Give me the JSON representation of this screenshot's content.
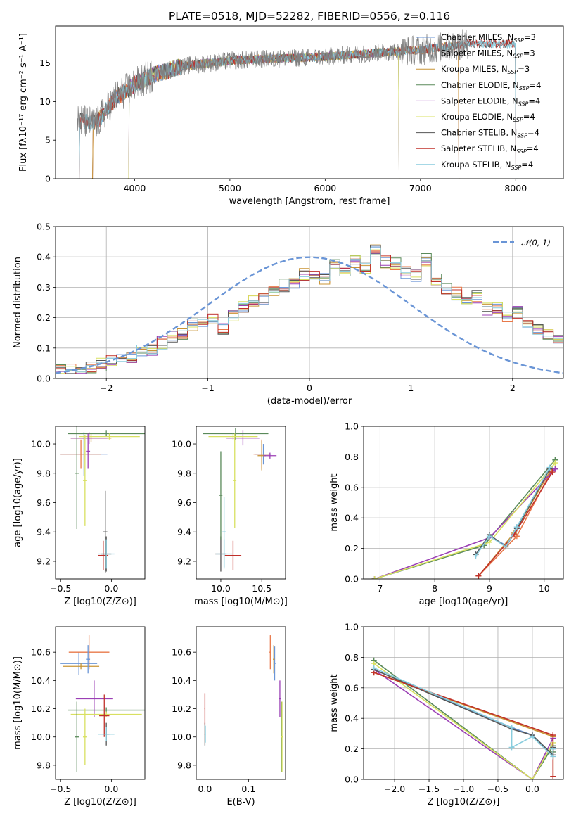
{
  "figure_title": "PLATE=0518, MJD=52282, FIBERID=0556, z=0.116",
  "series_colors": [
    "#6a95d6",
    "#e8794a",
    "#c89434",
    "#5a8a5a",
    "#9b3fb5",
    "#d8e060",
    "#555555",
    "#c0302a",
    "#88ccdd"
  ],
  "chart_data": [
    {
      "type": "line",
      "id": "spectrum",
      "xlabel": "wavelength [Angstrom, rest frame]",
      "ylabel": "Flux [fλ10⁻¹⁷ erg cm⁻² s⁻¹ A⁻¹]",
      "xlim": [
        3170,
        8500
      ],
      "ylim": [
        0,
        19.8
      ],
      "xticks": [
        4000,
        5000,
        6000,
        7000,
        8000
      ],
      "yticks": [
        0,
        5,
        10,
        15
      ],
      "legend_position": "right",
      "data_color": "#808080",
      "data_wavelength_range": [
        3400,
        7500
      ],
      "data_description_points": {
        "x": [
          3400,
          3600,
          3800,
          4000,
          4200,
          4500,
          5000,
          5500,
          6000,
          6500,
          7000,
          7500
        ],
        "y": [
          7.5,
          7.2,
          10.5,
          12.2,
          13.5,
          14.6,
          15.3,
          15.6,
          15.8,
          16.3,
          16.7,
          17.5
        ]
      },
      "series": [
        {
          "name": "Chabrier MILES, N_SSP=3",
          "x_range": [
            3540,
            7420
          ]
        },
        {
          "name": "Salpeter MILES, N_SSP=3",
          "x_range": [
            3540,
            7420
          ]
        },
        {
          "name": "Kroupa MILES, N_SSP=3",
          "x_range": [
            3540,
            7420
          ]
        },
        {
          "name": "Chabrier ELODIE, N_SSP=4",
          "x_range": [
            3920,
            6790
          ]
        },
        {
          "name": "Salpeter ELODIE, N_SSP=4",
          "x_range": [
            3920,
            6790
          ]
        },
        {
          "name": "Kroupa ELODIE, N_SSP=4",
          "x_range": [
            3920,
            6790
          ]
        },
        {
          "name": "Chabrier STELIB, N_SSP=4",
          "x_range": [
            3400,
            8020
          ]
        },
        {
          "name": "Salpeter STELIB, N_SSP=4",
          "x_range": [
            3400,
            8020
          ]
        },
        {
          "name": "Kroupa STELIB, N_SSP=4",
          "x_range": [
            3400,
            8020
          ]
        }
      ]
    },
    {
      "type": "histogram",
      "id": "residuals",
      "xlabel": "(data-model)/error",
      "ylabel": "Normed distribution",
      "xlim": [
        -2.5,
        2.5
      ],
      "ylim": [
        0,
        0.5
      ],
      "xticks": [
        -2,
        -1,
        0,
        1,
        2
      ],
      "yticks": [
        0.0,
        0.1,
        0.2,
        0.3,
        0.4,
        0.5
      ],
      "grid": true,
      "bin_width": 0.1,
      "reference_curve": {
        "name": "𝒩(0, 1)",
        "style": "dashed",
        "color": "#6a95d6",
        "mean": 0,
        "sigma": 1
      },
      "legend_position": "top-right",
      "base_bin_values": [
        0.036,
        0.03,
        0.028,
        0.035,
        0.045,
        0.057,
        0.062,
        0.072,
        0.09,
        0.095,
        0.118,
        0.135,
        0.15,
        0.175,
        0.182,
        0.195,
        0.165,
        0.205,
        0.238,
        0.26,
        0.26,
        0.28,
        0.305,
        0.31,
        0.34,
        0.345,
        0.33,
        0.375,
        0.35,
        0.385,
        0.36,
        0.42,
        0.385,
        0.375,
        0.35,
        0.34,
        0.39,
        0.325,
        0.3,
        0.28,
        0.255,
        0.27,
        0.23,
        0.235,
        0.205,
        0.215,
        0.185,
        0.16,
        0.14,
        0.12,
        0.11,
        0.098,
        0.085,
        0.08,
        0.066,
        0.058,
        0.05,
        0.04,
        0.032,
        0.028
      ]
    },
    {
      "type": "errorbar",
      "id": "age_vs_Z",
      "xlabel": "Z [log10(Z/Z⊙)]",
      "ylabel": "age  [log10(age/yr)]",
      "xlim": [
        -0.55,
        0.33
      ],
      "ylim": [
        9.08,
        10.12
      ],
      "xticks": [
        -0.5,
        0.0
      ],
      "yticks": [
        9.2,
        9.4,
        9.6,
        9.8,
        10.0
      ],
      "points": [
        {
          "series": 0,
          "x": -0.27,
          "y": 9.93,
          "xerr": 0.23,
          "yerr": 0.15
        },
        {
          "series": 1,
          "x": -0.3,
          "y": 9.93,
          "xerr": 0.2,
          "yerr": 0.1
        },
        {
          "series": 2,
          "x": -0.2,
          "y": 10.04,
          "xerr": 0.2,
          "yerr": 0.03
        },
        {
          "series": 3,
          "x": -0.05,
          "y": 10.07,
          "xerr": 0.38,
          "yerr": 0.02
        },
        {
          "series": 4,
          "x": -0.22,
          "y": 10.04,
          "xerr": 0.18,
          "yerr": 0.04
        },
        {
          "series": 5,
          "x": -0.02,
          "y": 10.05,
          "xerr": 0.3,
          "yerr": 0.02
        },
        {
          "series": 6,
          "x": -0.05,
          "y": 9.25,
          "xerr": 0.05,
          "yerr": 0.12
        },
        {
          "series": 7,
          "x": -0.08,
          "y": 9.24,
          "xerr": 0.05,
          "yerr": 0.1
        },
        {
          "series": 8,
          "x": -0.05,
          "y": 9.25,
          "xerr": 0.08,
          "yerr": 0.1
        },
        {
          "series": 3,
          "x": -0.34,
          "y": 9.8,
          "xerr": 0.02,
          "yerr": 0.38
        },
        {
          "series": 5,
          "x": -0.26,
          "y": 9.75,
          "xerr": 0.02,
          "yerr": 0.31
        },
        {
          "series": 4,
          "x": -0.23,
          "y": 9.95,
          "xerr": 0.02,
          "yerr": 0.12
        },
        {
          "series": 6,
          "x": -0.06,
          "y": 9.4,
          "xerr": 0.02,
          "yerr": 0.28
        }
      ]
    },
    {
      "type": "errorbar",
      "id": "age_vs_mass",
      "xlabel": "mass [log10(M/M⊙)]",
      "ylabel": "",
      "xlim": [
        9.7,
        10.79
      ],
      "ylim": [
        9.08,
        10.12
      ],
      "xticks": [
        10.0,
        10.5
      ],
      "yticks": [
        9.2,
        9.4,
        9.6,
        9.8,
        10.0
      ],
      "points": [
        {
          "series": 0,
          "x": 10.52,
          "y": 9.93,
          "xerr": 0.1,
          "yerr": 0.07
        },
        {
          "series": 1,
          "x": 10.5,
          "y": 9.93,
          "xerr": 0.1,
          "yerr": 0.1
        },
        {
          "series": 2,
          "x": 10.5,
          "y": 9.92,
          "xerr": 0.05,
          "yerr": 0.1
        },
        {
          "series": 4,
          "x": 10.27,
          "y": 10.04,
          "xerr": 0.2,
          "yerr": 0.05
        },
        {
          "series": 3,
          "x": 10.18,
          "y": 10.07,
          "xerr": 0.4,
          "yerr": 0.04
        },
        {
          "series": 5,
          "x": 10.15,
          "y": 10.05,
          "xerr": 0.3,
          "yerr": 0.02
        },
        {
          "series": 4,
          "x": 10.6,
          "y": 9.92,
          "xerr": 0.08,
          "yerr": 0.02
        },
        {
          "series": 6,
          "x": 10.0,
          "y": 9.25,
          "xerr": 0.07,
          "yerr": 0.12
        },
        {
          "series": 7,
          "x": 10.15,
          "y": 9.24,
          "xerr": 0.1,
          "yerr": 0.1
        },
        {
          "series": 8,
          "x": 10.04,
          "y": 9.25,
          "xerr": 0.1,
          "yerr": 0.1
        },
        {
          "series": 3,
          "x": 10.0,
          "y": 9.65,
          "xerr": 0.02,
          "yerr": 0.3
        },
        {
          "series": 5,
          "x": 10.17,
          "y": 9.75,
          "xerr": 0.02,
          "yerr": 0.32
        },
        {
          "series": 8,
          "x": 10.04,
          "y": 9.4,
          "xerr": 0.02,
          "yerr": 0.24
        }
      ]
    },
    {
      "type": "line",
      "id": "massweight_vs_age",
      "xlabel": "age  [log10(age/yr)]",
      "ylabel": "mass weight",
      "xlim": [
        6.7,
        10.35
      ],
      "ylim": [
        0,
        1.0
      ],
      "xticks": [
        7,
        8,
        9,
        10
      ],
      "yticks": [
        0.0,
        0.2,
        0.4,
        0.6,
        0.8,
        1.0
      ],
      "grid": true,
      "series": [
        {
          "color": 0,
          "x": [
            8.75,
            9.0,
            9.3,
            9.5,
            10.1
          ],
          "y": [
            0.16,
            0.28,
            0.22,
            0.34,
            0.72
          ]
        },
        {
          "color": 1,
          "x": [
            8.8,
            9.5,
            10.15
          ],
          "y": [
            0.02,
            0.28,
            0.72
          ]
        },
        {
          "color": 2,
          "x": [
            8.8,
            9.45,
            10.1
          ],
          "y": [
            0.02,
            0.3,
            0.7
          ]
        },
        {
          "color": 3,
          "x": [
            6.9,
            8.9,
            10.2
          ],
          "y": [
            0.0,
            0.22,
            0.78
          ]
        },
        {
          "color": 4,
          "x": [
            6.9,
            9.0,
            10.2
          ],
          "y": [
            0.0,
            0.27,
            0.72
          ]
        },
        {
          "color": 5,
          "x": [
            6.9,
            9.0,
            10.2
          ],
          "y": [
            0.0,
            0.24,
            0.76
          ]
        },
        {
          "color": 6,
          "x": [
            8.75,
            9.0,
            9.3,
            9.5,
            10.1
          ],
          "y": [
            0.16,
            0.29,
            0.21,
            0.33,
            0.72
          ]
        },
        {
          "color": 7,
          "x": [
            8.8,
            9.45,
            10.15
          ],
          "y": [
            0.02,
            0.29,
            0.7
          ]
        },
        {
          "color": 8,
          "x": [
            8.75,
            9.0,
            9.3,
            9.5,
            10.1
          ],
          "y": [
            0.15,
            0.28,
            0.21,
            0.34,
            0.73
          ]
        }
      ]
    },
    {
      "type": "errorbar",
      "id": "mass_vs_Z",
      "xlabel": "Z [log10(Z/Z⊙)]",
      "ylabel": "mass [log10(M/M⊙)]",
      "xlim": [
        -0.55,
        0.33
      ],
      "ylim": [
        9.7,
        10.78
      ],
      "xticks": [
        -0.5,
        0.0
      ],
      "yticks": [
        9.8,
        10.0,
        10.2,
        10.4,
        10.6
      ],
      "points": [
        {
          "series": 0,
          "x": -0.32,
          "y": 10.52,
          "xerr": 0.18,
          "yerr": 0.08
        },
        {
          "series": 1,
          "x": -0.22,
          "y": 10.6,
          "xerr": 0.2,
          "yerr": 0.12
        },
        {
          "series": 2,
          "x": -0.3,
          "y": 10.5,
          "xerr": 0.18,
          "yerr": 0.02
        },
        {
          "series": 3,
          "x": -0.05,
          "y": 10.19,
          "xerr": 0.38,
          "yerr": 0.02
        },
        {
          "series": 4,
          "x": -0.17,
          "y": 10.27,
          "xerr": 0.18,
          "yerr": 0.13
        },
        {
          "series": 5,
          "x": -0.05,
          "y": 10.16,
          "xerr": 0.35,
          "yerr": 0.02
        },
        {
          "series": 6,
          "x": -0.05,
          "y": 10.02,
          "xerr": 0.03,
          "yerr": 0.08
        },
        {
          "series": 7,
          "x": -0.07,
          "y": 10.15,
          "xerr": 0.05,
          "yerr": 0.15
        },
        {
          "series": 8,
          "x": -0.05,
          "y": 10.02,
          "xerr": 0.08,
          "yerr": 0.05
        },
        {
          "series": 3,
          "x": -0.34,
          "y": 10.0,
          "xerr": 0.02,
          "yerr": 0.25
        },
        {
          "series": 5,
          "x": -0.26,
          "y": 10.0,
          "xerr": 0.02,
          "yerr": 0.2
        },
        {
          "series": 0,
          "x": -0.23,
          "y": 10.55,
          "xerr": 0.02,
          "yerr": 0.1
        }
      ]
    },
    {
      "type": "errorbar",
      "id": "mass_vs_ebv",
      "xlabel": "E(B-V)",
      "ylabel": "",
      "xlim": [
        -0.02,
        0.185
      ],
      "ylim": [
        9.7,
        10.78
      ],
      "xticks": [
        0.0,
        0.1
      ],
      "yticks": [
        9.8,
        10.0,
        10.2,
        10.4,
        10.6
      ],
      "points": [
        {
          "series": 0,
          "x": 0.16,
          "y": 10.52,
          "xerr": 0.002,
          "yerr": 0.12
        },
        {
          "series": 1,
          "x": 0.15,
          "y": 10.6,
          "xerr": 0.002,
          "yerr": 0.12
        },
        {
          "series": 2,
          "x": 0.158,
          "y": 10.55,
          "xerr": 0.002,
          "yerr": 0.1
        },
        {
          "series": 3,
          "x": 0.176,
          "y": 10.0,
          "xerr": 0.002,
          "yerr": 0.25
        },
        {
          "series": 4,
          "x": 0.172,
          "y": 10.27,
          "xerr": 0.002,
          "yerr": 0.13
        },
        {
          "series": 5,
          "x": 0.177,
          "y": 10.0,
          "xerr": 0.002,
          "yerr": 0.25
        },
        {
          "series": 6,
          "x": 0.0,
          "y": 10.02,
          "xerr": 0.001,
          "yerr": 0.08
        },
        {
          "series": 7,
          "x": 0.0,
          "y": 10.2,
          "xerr": 0.001,
          "yerr": 0.11
        },
        {
          "series": 8,
          "x": 0.001,
          "y": 10.02,
          "xerr": 0.001,
          "yerr": 0.06
        }
      ]
    },
    {
      "type": "line",
      "id": "massweight_vs_Z",
      "xlabel": "Z [log10(Z/Z⊙)]",
      "ylabel": "mass weight",
      "xlim": [
        -2.45,
        0.45
      ],
      "ylim": [
        0,
        1.0
      ],
      "xticks": [
        -2.0,
        -1.5,
        -1.0,
        -0.5,
        0.0
      ],
      "yticks": [
        0.0,
        0.2,
        0.4,
        0.6,
        0.8,
        1.0
      ],
      "grid": true,
      "series": [
        {
          "color": 0,
          "x": [
            -2.3,
            -0.3,
            0.0,
            0.3,
            0.3
          ],
          "y": [
            0.72,
            0.34,
            0.29,
            0.16,
            0.2
          ]
        },
        {
          "color": 1,
          "x": [
            -2.3,
            0.3,
            0.3
          ],
          "y": [
            0.7,
            0.29,
            0.02
          ]
        },
        {
          "color": 2,
          "x": [
            -2.3,
            0.3,
            0.3
          ],
          "y": [
            0.7,
            0.28,
            0.02
          ]
        },
        {
          "color": 3,
          "x": [
            -2.3,
            0.0,
            0.3,
            0.3
          ],
          "y": [
            0.78,
            0.0,
            0.22,
            0.18
          ]
        },
        {
          "color": 4,
          "x": [
            -2.3,
            0.0,
            0.3
          ],
          "y": [
            0.72,
            0.0,
            0.27
          ]
        },
        {
          "color": 5,
          "x": [
            -2.3,
            0.0,
            0.3
          ],
          "y": [
            0.76,
            0.0,
            0.24
          ]
        },
        {
          "color": 6,
          "x": [
            -2.3,
            -0.3,
            0.0,
            0.3,
            0.3
          ],
          "y": [
            0.72,
            0.33,
            0.29,
            0.16,
            0.21
          ]
        },
        {
          "color": 7,
          "x": [
            -2.3,
            0.3,
            0.3
          ],
          "y": [
            0.7,
            0.29,
            0.02
          ]
        },
        {
          "color": 8,
          "x": [
            -2.3,
            -0.3,
            -0.3,
            0.0,
            0.3,
            0.3
          ],
          "y": [
            0.73,
            0.34,
            0.21,
            0.28,
            0.15,
            0.2
          ]
        }
      ]
    }
  ]
}
